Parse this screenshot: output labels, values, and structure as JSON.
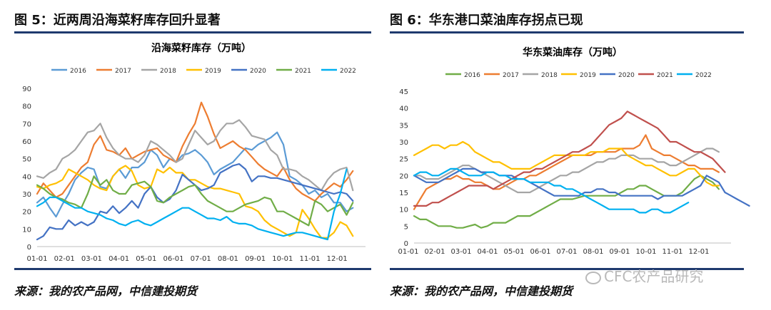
{
  "watermark": "CFC农产品研究",
  "charts": [
    {
      "figure_title": "图 5：近两周沿海菜籽库存回升显著",
      "source": "来源：我的农产品网，中信建投期货",
      "chart_data": {
        "type": "line",
        "title": "沿海菜籽库存（万吨）",
        "xlabel": "",
        "ylabel": "",
        "x_ticks": [
          "01-01",
          "02-01",
          "03-01",
          "04-01",
          "05-01",
          "06-01",
          "07-01",
          "08-01",
          "09-01",
          "10-01",
          "11-01",
          "12-01"
        ],
        "xlim": [
          0,
          52
        ],
        "ylim": [
          0,
          90
        ],
        "y_ticks": [
          0,
          10,
          20,
          30,
          40,
          50,
          60,
          70,
          80,
          90
        ],
        "grid": false,
        "legend": "top",
        "series": [
          {
            "name": "2016",
            "color": "#5b9bd5",
            "values": [
              25,
              28,
              22,
              17,
              24,
              30,
              38,
              42,
              45,
              44,
              34,
              33,
              40,
              44,
              39,
              45,
              45,
              48,
              55,
              52,
              45,
              50,
              48,
              52,
              53,
              55,
              52,
              48,
              41,
              44,
              46,
              48,
              52,
              56,
              55,
              58,
              60,
              62,
              65,
              58,
              40,
              38,
              35,
              30,
              32,
              28,
              30,
              25,
              25,
              20,
              22
            ]
          },
          {
            "name": "2017",
            "color": "#ed7d31",
            "values": [
              30,
              36,
              32,
              28,
              30,
              35,
              40,
              45,
              48,
              58,
              63,
              55,
              54,
              52,
              56,
              50,
              52,
              54,
              55,
              56,
              52,
              50,
              48,
              57,
              64,
              70,
              82,
              74,
              64,
              56,
              58,
              60,
              57,
              55,
              51,
              47,
              44,
              42,
              40,
              45,
              38,
              33,
              30,
              28,
              26,
              30,
              33,
              36,
              34,
              38,
              43
            ]
          },
          {
            "name": "2018",
            "color": "#a5a5a5",
            "values": [
              40,
              39,
              42,
              44,
              50,
              52,
              55,
              60,
              65,
              66,
              70,
              62,
              56,
              52,
              50,
              50,
              48,
              52,
              60,
              58,
              55,
              52,
              48,
              50,
              58,
              66,
              62,
              58,
              60,
              66,
              70,
              70,
              72,
              68,
              63,
              62,
              61,
              55,
              52,
              44,
              44,
              43,
              40,
              38,
              35,
              32,
              38,
              42,
              44,
              45,
              32
            ]
          },
          {
            "name": "2019",
            "color": "#ffc000",
            "values": [
              34,
              33,
              35,
              36,
              38,
              44,
              42,
              40,
              38,
              35,
              33,
              32,
              40,
              44,
              46,
              43,
              35,
              33,
              34,
              44,
              42,
              45,
              42,
              42,
              38,
              38,
              36,
              34,
              33,
              33,
              32,
              31,
              30,
              23,
              22,
              20,
              15,
              12,
              10,
              8,
              6,
              8,
              21,
              16,
              10,
              5,
              5,
              8,
              14,
              12,
              6
            ]
          },
          {
            "name": "2020",
            "color": "#4472c4",
            "values": [
              4,
              6,
              11,
              10,
              10,
              15,
              12,
              14,
              12,
              14,
              20,
              19,
              23,
              19,
              22,
              26,
              22,
              30,
              34,
              28,
              25,
              27,
              32,
              41,
              38,
              35,
              32,
              33,
              35,
              42,
              44,
              46,
              47,
              44,
              37,
              40,
              40,
              39,
              39,
              38,
              37,
              36,
              35,
              34,
              33,
              32,
              31,
              30,
              31,
              30,
              26
            ]
          },
          {
            "name": "2021",
            "color": "#70ad47",
            "values": [
              35,
              33,
              30,
              28,
              27,
              25,
              24,
              22,
              30,
              40,
              35,
              38,
              32,
              30,
              30,
              35,
              36,
              37,
              34,
              26,
              25,
              28,
              30,
              32,
              34,
              35,
              30,
              26,
              24,
              22,
              20,
              20,
              22,
              24,
              25,
              26,
              28,
              27,
              20,
              20,
              18,
              16,
              14,
              12,
              26,
              24,
              20,
              22,
              24,
              18,
              25
            ]
          },
          {
            "name": "2022",
            "color": "#00b0f0",
            "values": [
              23,
              25,
              28,
              28,
              26,
              24,
              22,
              22,
              20,
              19,
              18,
              16,
              15,
              13,
              12,
              14,
              15,
              13,
              12,
              14,
              16,
              18,
              20,
              22,
              22,
              20,
              18,
              16,
              16,
              15,
              17,
              14,
              13,
              13,
              12,
              10,
              9,
              8,
              7,
              6,
              7,
              8,
              8,
              7,
              6,
              5,
              4,
              20,
              30,
              44
            ]
          }
        ]
      }
    },
    {
      "figure_title": "图 6：华东港口菜油库存拐点已现",
      "source": "来源：我的农产品网，中信建投期货",
      "chart_data": {
        "type": "line",
        "title": "华东菜油库存（万吨）",
        "xlabel": "",
        "ylabel": "",
        "x_ticks": [
          "01-01",
          "02-01",
          "03-01",
          "04-01",
          "05-01",
          "06-01",
          "07-01",
          "08-01",
          "09-01",
          "10-01",
          "11-01",
          "12-01"
        ],
        "xlim": [
          0,
          52
        ],
        "ylim": [
          0,
          45
        ],
        "y_ticks": [
          0,
          5,
          10,
          15,
          20,
          25,
          30,
          35,
          40,
          45
        ],
        "grid": false,
        "legend": "top",
        "series": [
          {
            "name": "2016",
            "color": "#70ad47",
            "values": [
              8,
              7,
              7,
              6,
              5,
              5,
              5,
              4.5,
              4.5,
              5,
              5.5,
              4.5,
              5,
              6,
              6,
              6,
              7,
              8,
              8,
              8,
              9,
              10,
              11,
              12,
              13,
              13,
              13,
              13.5,
              14,
              14,
              14,
              14,
              14,
              14,
              15,
              16,
              16,
              17,
              17,
              16,
              15,
              14,
              14,
              14,
              15,
              17,
              19,
              20,
              19,
              18,
              16
            ]
          },
          {
            "name": "2017",
            "color": "#ed7d31",
            "values": [
              10,
              13,
              16,
              17,
              18,
              19,
              19,
              20,
              19,
              19,
              18,
              18,
              17,
              16,
              16,
              17,
              18,
              19,
              19,
              20,
              20,
              21,
              22,
              23,
              24,
              25,
              26,
              26,
              26,
              26,
              27,
              27,
              27,
              27,
              28,
              28,
              28,
              29,
              32,
              28,
              27,
              26,
              26,
              25,
              24,
              23,
              23,
              22,
              22,
              22,
              21
            ]
          },
          {
            "name": "2018",
            "color": "#a5a5a5",
            "values": [
              20,
              20,
              19,
              19,
              19,
              20,
              21,
              22,
              23,
              23,
              22,
              21,
              20,
              19,
              18,
              17,
              16,
              15,
              15,
              15,
              16,
              17,
              18,
              19,
              20,
              20,
              21,
              21,
              22,
              23,
              24,
              24,
              25,
              25,
              26,
              26,
              26,
              25,
              25,
              25,
              24,
              24,
              23,
              23,
              24,
              25,
              26,
              27,
              28,
              28,
              27
            ]
          },
          {
            "name": "2019",
            "color": "#ffc000",
            "values": [
              26,
              27,
              28,
              29,
              29,
              28,
              29,
              29,
              30,
              29,
              27,
              26,
              25,
              24,
              24,
              23,
              22,
              22,
              22,
              22,
              23,
              24,
              25,
              26,
              26,
              26,
              26,
              26,
              26,
              27,
              27,
              27,
              28,
              28,
              28,
              26,
              25,
              24,
              23,
              23,
              22,
              21,
              20,
              20,
              21,
              22,
              22,
              20,
              18,
              17,
              17
            ]
          },
          {
            "name": "2020",
            "color": "#4472c4",
            "values": [
              20,
              19,
              18,
              18,
              18,
              19,
              20,
              21,
              22,
              22,
              22,
              21,
              21,
              21,
              20,
              20,
              20,
              19,
              19,
              18,
              17,
              16,
              15,
              14,
              14,
              14,
              14,
              14,
              15,
              15,
              16,
              16,
              15,
              15,
              14,
              14,
              14,
              14,
              14,
              14,
              13,
              14,
              14,
              14,
              14,
              15,
              16,
              17,
              20,
              19,
              18,
              15,
              14,
              13,
              12,
              11
            ]
          },
          {
            "name": "2021",
            "color": "#c0504d",
            "values": [
              11,
              11,
              11,
              12,
              12,
              13,
              14,
              15,
              16,
              17,
              17,
              17,
              17,
              16,
              17,
              18,
              19,
              20,
              21,
              21,
              22,
              22,
              23,
              24,
              25,
              26,
              27,
              27,
              28,
              29,
              31,
              33,
              35,
              36,
              37,
              39,
              38,
              37,
              36,
              35,
              34,
              32,
              30,
              30,
              29,
              28,
              27,
              27,
              26,
              25,
              23,
              21
            ]
          },
          {
            "name": "2022",
            "color": "#00b0f0",
            "values": [
              20,
              21,
              21,
              20,
              20,
              21,
              22,
              22,
              21,
              20,
              20,
              20,
              21,
              21,
              20,
              20,
              19,
              19,
              19,
              18,
              18,
              18,
              18,
              17,
              17,
              16,
              16,
              15,
              14,
              13,
              12,
              11,
              10,
              10,
              10,
              10,
              10,
              9,
              9,
              10,
              10,
              9,
              9,
              10,
              11,
              12
            ]
          }
        ]
      }
    }
  ]
}
